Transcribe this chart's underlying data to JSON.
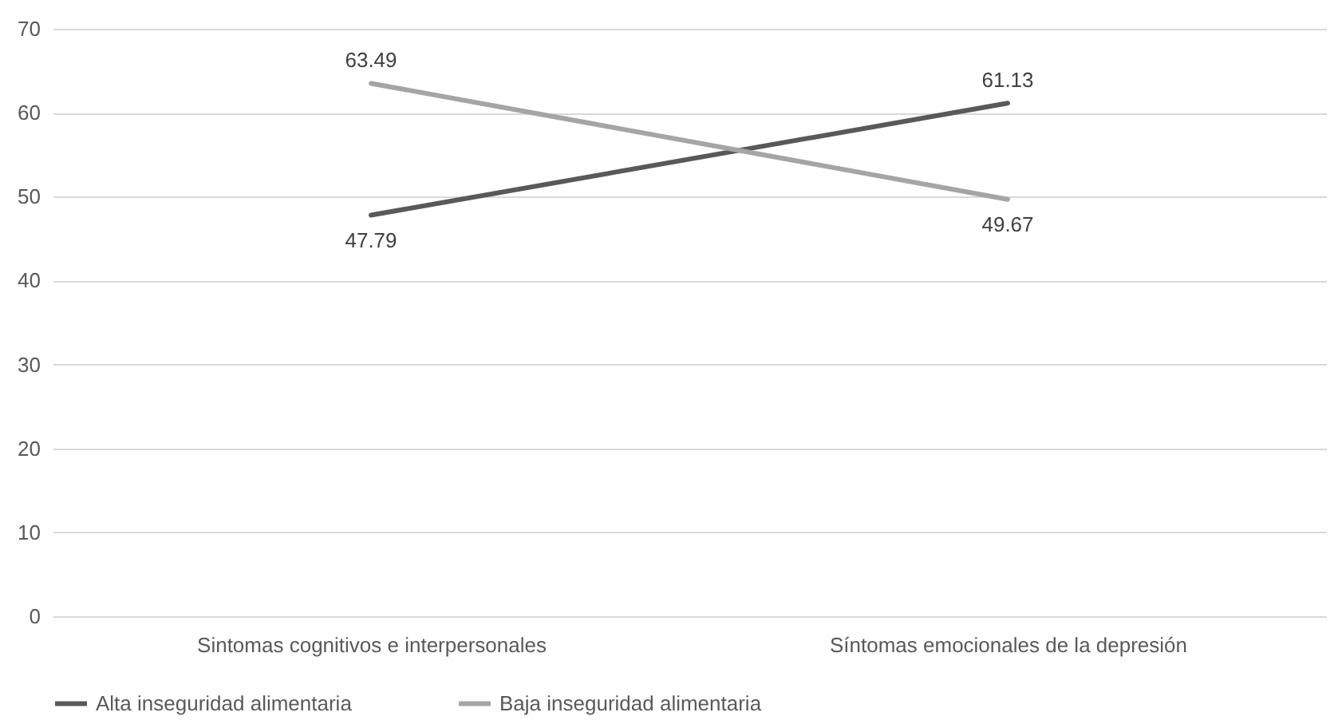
{
  "chart_data": {
    "type": "line",
    "categories": [
      "Sintomas cognitivos e interpersonales",
      "Síntomas emocionales de la depresión"
    ],
    "series": [
      {
        "name": "Alta inseguridad alimentaria",
        "color": "#595959",
        "values": [
          47.79,
          61.13
        ]
      },
      {
        "name": "Baja inseguridad alimentaria",
        "color": "#a5a5a5",
        "values": [
          63.49,
          49.67
        ]
      }
    ],
    "ylim": [
      0,
      70
    ],
    "yticks": [
      0,
      10,
      20,
      30,
      40,
      50,
      60,
      70
    ],
    "grid": "y",
    "legend": "bottom",
    "data_labels": true
  }
}
